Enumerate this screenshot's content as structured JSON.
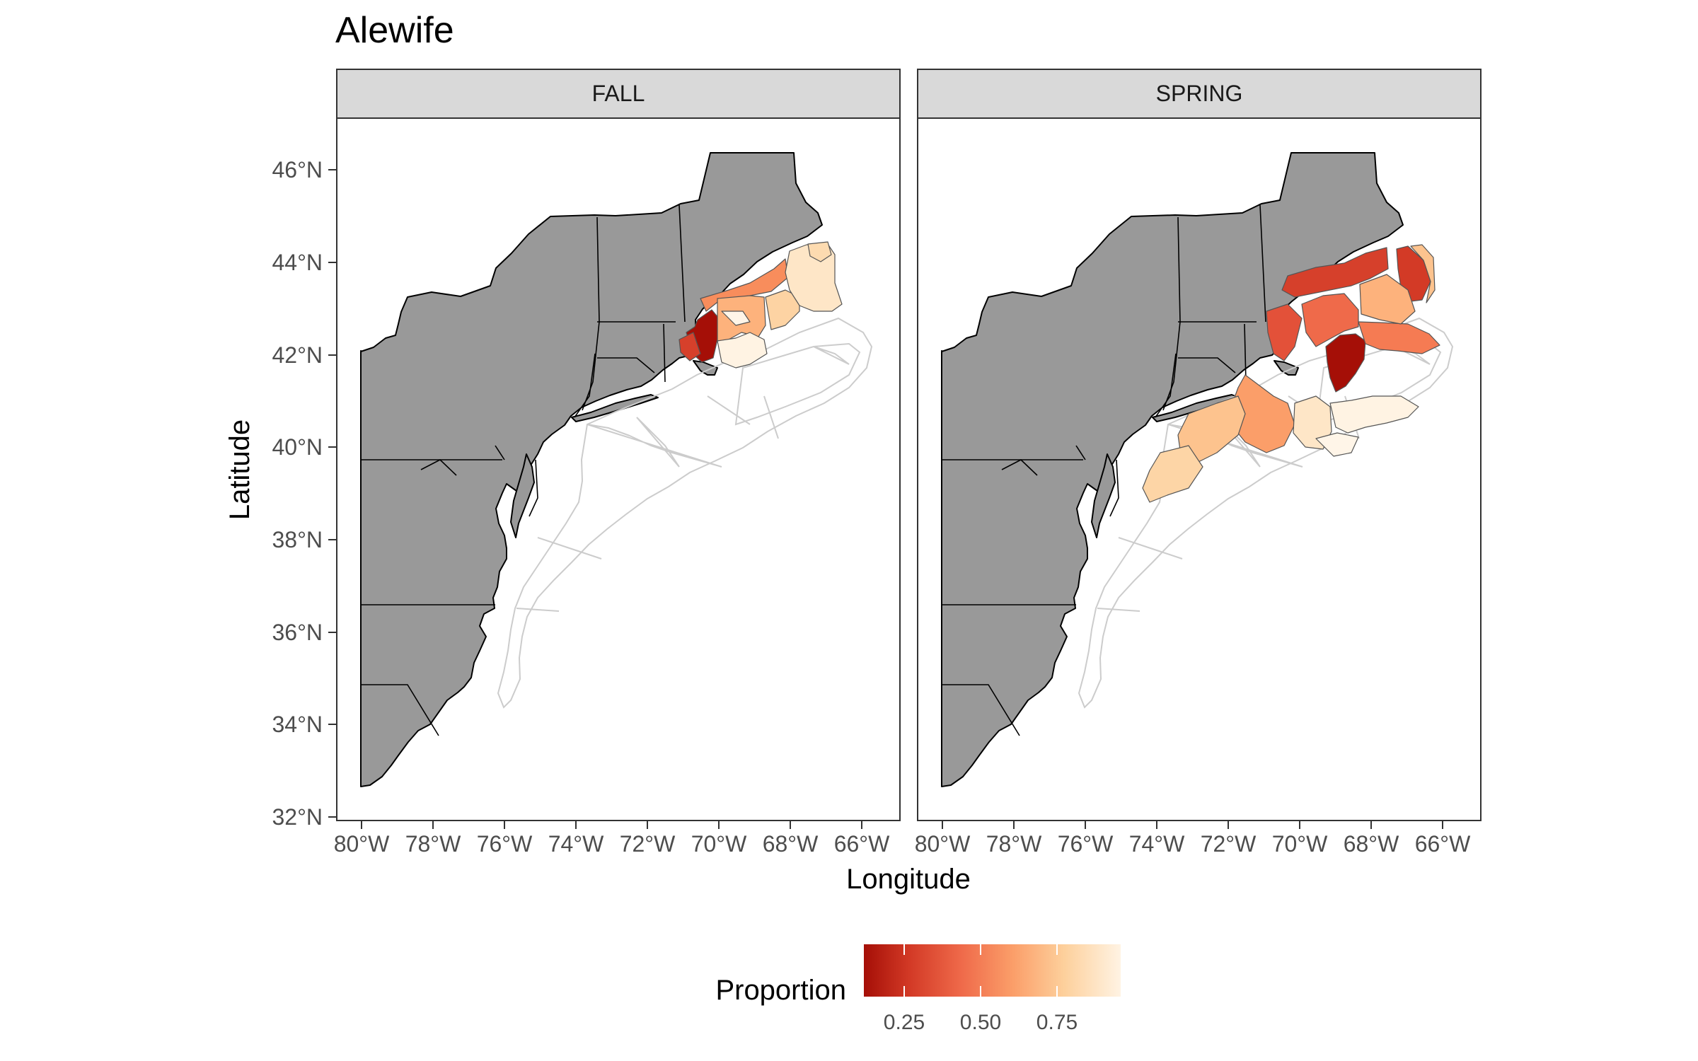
{
  "title": "Alewife",
  "axes": {
    "xlabel": "Longitude",
    "ylabel": "Latitude",
    "x_ticks": [
      "80°W",
      "78°W",
      "76°W",
      "74°W",
      "72°W",
      "70°W",
      "68°W",
      "66°W"
    ],
    "y_ticks": [
      "46°N",
      "44°N",
      "42°N",
      "40°N",
      "38°N",
      "36°N",
      "34°N",
      "32°N"
    ]
  },
  "panels": [
    {
      "label": "FALL"
    },
    {
      "label": "SPRING"
    }
  ],
  "legend": {
    "title": "Proportion",
    "ticks": [
      "0.25",
      "0.50",
      "0.75"
    ],
    "colors": [
      "#b2180e",
      "#d6402b",
      "#f06a4b",
      "#f99a66",
      "#fdc38e",
      "#fee6c7",
      "#fff5e6"
    ]
  },
  "colors": {
    "land": "#999999",
    "strip": "#d9d9d9",
    "strata_outline": "#cccccc"
  },
  "chart_data": {
    "type": "map",
    "title": "Alewife",
    "xlabel": "Longitude",
    "ylabel": "Latitude",
    "xlim": [
      -80.5,
      -64.8
    ],
    "ylim": [
      32,
      47.1
    ],
    "facets": [
      "FALL",
      "SPRING"
    ],
    "fill_variable": "Proportion",
    "fill_scale": {
      "type": "continuous",
      "palette": "OrRd reversed",
      "ticks": [
        0.25,
        0.5,
        0.75
      ]
    }
  }
}
